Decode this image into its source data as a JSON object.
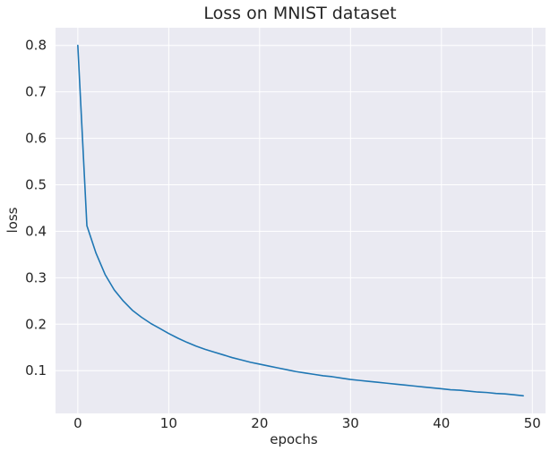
{
  "chart_data": {
    "type": "line",
    "title": "Loss on MNIST dataset",
    "xlabel": "epochs",
    "ylabel": "loss",
    "xlim": [
      -2.45,
      51.45
    ],
    "ylim": [
      0.008,
      0.838
    ],
    "xticks": [
      0,
      10,
      20,
      30,
      40,
      50
    ],
    "yticks": [
      0.1,
      0.2,
      0.3,
      0.4,
      0.5,
      0.6,
      0.7,
      0.8
    ],
    "grid": true,
    "colors": {
      "background": "#eaeaf2",
      "grid": "#ffffff",
      "series": "#1f77b4"
    },
    "series": [
      {
        "name": "",
        "x": [
          0,
          1,
          2,
          3,
          4,
          5,
          6,
          7,
          8,
          9,
          10,
          11,
          12,
          13,
          14,
          15,
          16,
          17,
          18,
          19,
          20,
          21,
          22,
          23,
          24,
          25,
          26,
          27,
          28,
          29,
          30,
          31,
          32,
          33,
          34,
          35,
          36,
          37,
          38,
          39,
          40,
          41,
          42,
          43,
          44,
          45,
          46,
          47,
          48,
          49
        ],
        "values": [
          0.8,
          0.412,
          0.353,
          0.307,
          0.274,
          0.25,
          0.23,
          0.215,
          0.202,
          0.191,
          0.18,
          0.17,
          0.161,
          0.153,
          0.146,
          0.14,
          0.134,
          0.128,
          0.123,
          0.118,
          0.114,
          0.11,
          0.106,
          0.102,
          0.098,
          0.095,
          0.092,
          0.089,
          0.087,
          0.084,
          0.081,
          0.079,
          0.077,
          0.075,
          0.073,
          0.071,
          0.069,
          0.067,
          0.065,
          0.063,
          0.061,
          0.059,
          0.058,
          0.056,
          0.054,
          0.053,
          0.051,
          0.05,
          0.048,
          0.046
        ]
      }
    ]
  }
}
